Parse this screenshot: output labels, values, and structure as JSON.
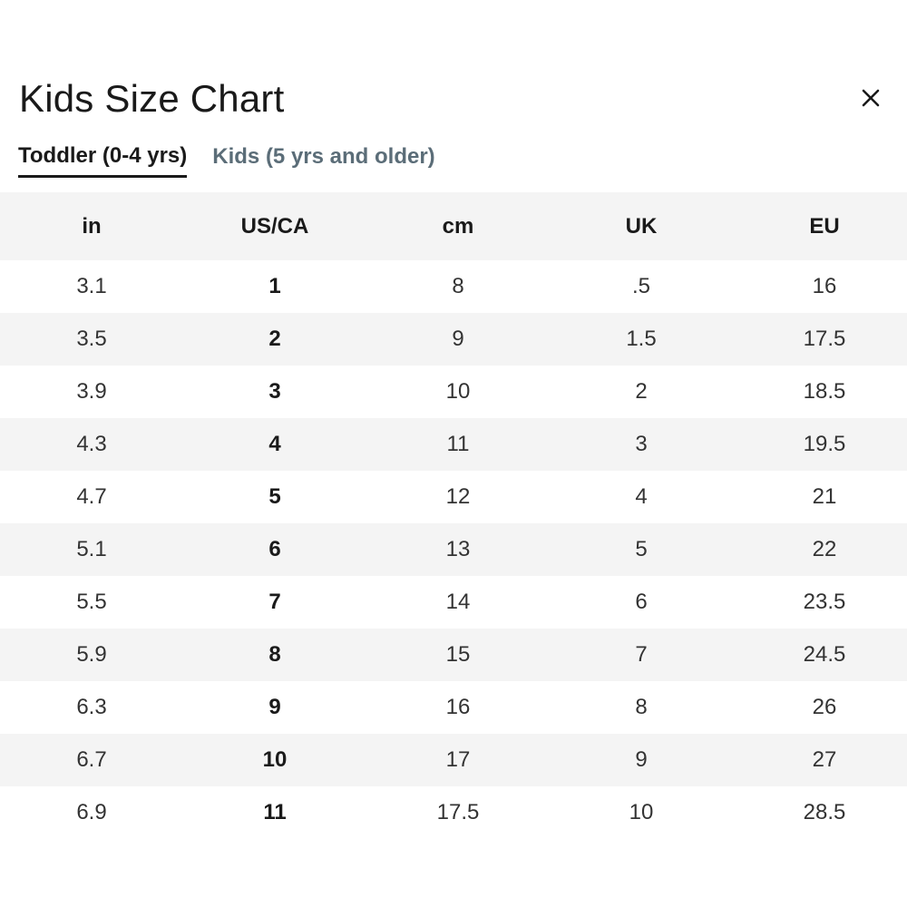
{
  "modal": {
    "title": "Kids Size Chart",
    "close_icon": "close-icon"
  },
  "tabs": [
    {
      "label": "Toddler (0-4 yrs)",
      "active": true
    },
    {
      "label": "Kids (5 yrs and older)",
      "active": false
    }
  ],
  "table": {
    "headers": [
      "in",
      "US/CA",
      "cm",
      "UK",
      "EU"
    ],
    "rows": [
      [
        "3.1",
        "1",
        "8",
        ".5",
        "16"
      ],
      [
        "3.5",
        "2",
        "9",
        "1.5",
        "17.5"
      ],
      [
        "3.9",
        "3",
        "10",
        "2",
        "18.5"
      ],
      [
        "4.3",
        "4",
        "11",
        "3",
        "19.5"
      ],
      [
        "4.7",
        "5",
        "12",
        "4",
        "21"
      ],
      [
        "5.1",
        "6",
        "13",
        "5",
        "22"
      ],
      [
        "5.5",
        "7",
        "14",
        "6",
        "23.5"
      ],
      [
        "5.9",
        "8",
        "15",
        "7",
        "24.5"
      ],
      [
        "6.3",
        "9",
        "16",
        "8",
        "26"
      ],
      [
        "6.7",
        "10",
        "17",
        "9",
        "27"
      ],
      [
        "6.9",
        "11",
        "17.5",
        "10",
        "28.5"
      ]
    ]
  },
  "colors": {
    "text": "#1a1a1a",
    "inactive_tab": "#5b6d78",
    "stripe": "#f4f4f4"
  }
}
